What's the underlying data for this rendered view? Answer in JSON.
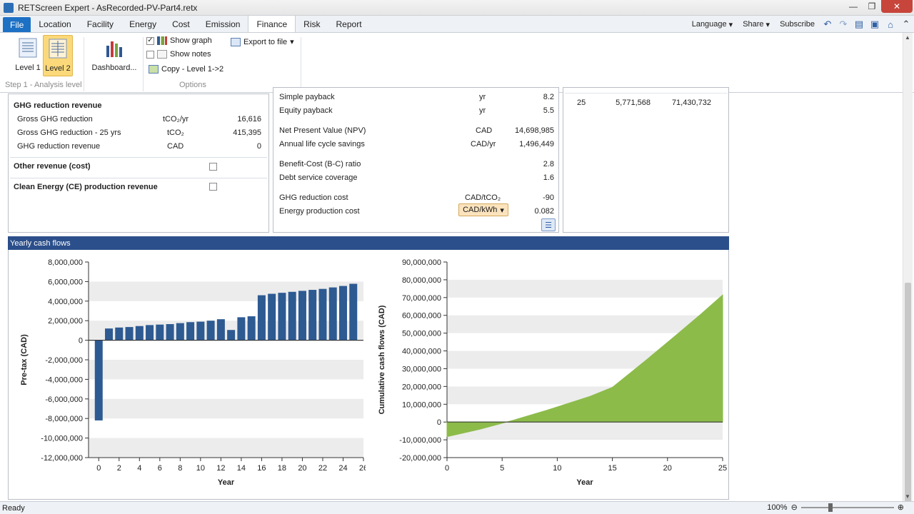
{
  "window": {
    "title": "RETScreen Expert - AsRecorded-PV-Part4.retx",
    "minimize_glyph": "—",
    "restore_glyph": "❐",
    "close_glyph": "✕"
  },
  "tabs": [
    {
      "label": "File"
    },
    {
      "label": "Location"
    },
    {
      "label": "Facility"
    },
    {
      "label": "Energy"
    },
    {
      "label": "Cost"
    },
    {
      "label": "Emission"
    },
    {
      "label": "Finance"
    },
    {
      "label": "Risk"
    },
    {
      "label": "Report"
    }
  ],
  "active_tab": "Finance",
  "top_right": {
    "language": "Language",
    "share": "Share",
    "subscribe": "Subscribe"
  },
  "ribbon": {
    "level1": "Level 1",
    "level2": "Level 2",
    "dashboard": "Dashboard...",
    "show_graph": "Show graph",
    "show_notes": "Show notes",
    "export": "Export to file",
    "copy": "Copy - Level 1->2",
    "group_analysis": "Step 1 - Analysis level",
    "group_options": "Options",
    "show_graph_checked": true,
    "show_notes_checked": false
  },
  "left_panel": {
    "ghg_title": "GHG reduction revenue",
    "rows": [
      {
        "label": "Gross GHG reduction",
        "unit": "tCO₂/yr",
        "value": "16,616"
      },
      {
        "label": "Gross GHG reduction - 25 yrs",
        "unit": "tCO₂",
        "value": "415,395"
      },
      {
        "label": "GHG reduction revenue",
        "unit": "CAD",
        "value": "0"
      }
    ],
    "other_revenue": "Other revenue (cost)",
    "clean_energy": "Clean Energy (CE) production revenue"
  },
  "middle_panel": {
    "rows": [
      {
        "label": "Simple payback",
        "unit": "yr",
        "value": "8.2"
      },
      {
        "label": "Equity payback",
        "unit": "yr",
        "value": "5.5"
      },
      {
        "label": "Net Present Value (NPV)",
        "unit": "CAD",
        "value": "14,698,985"
      },
      {
        "label": "Annual life cycle savings",
        "unit": "CAD/yr",
        "value": "1,496,449"
      },
      {
        "label": "Benefit-Cost (B-C) ratio",
        "unit": "",
        "value": "2.8"
      },
      {
        "label": "Debt service coverage",
        "unit": "",
        "value": "1.6"
      },
      {
        "label": "GHG reduction cost",
        "unit": "CAD/tCO₂",
        "value": "-90"
      },
      {
        "label": "Energy production cost",
        "unit": "CAD/kWh",
        "value": "0.082"
      }
    ]
  },
  "right_panel": {
    "rows": [
      {
        "year": "25",
        "pretax": "5,771,568",
        "cumulative": "71,430,732"
      }
    ]
  },
  "cashflow": {
    "header": "Yearly cash flows"
  },
  "status": {
    "text": "Ready",
    "zoom": "100%"
  },
  "colors": {
    "bar": "#2e5a92",
    "area": "#8cbb4a",
    "header": "#2b4f8a"
  },
  "chart_data": [
    {
      "type": "bar",
      "xlabel": "Year",
      "ylabel": "Pre-tax (CAD)",
      "ylim": [
        -12000000,
        8000000
      ],
      "yticks": [
        8000000,
        6000000,
        4000000,
        2000000,
        0,
        -2000000,
        -4000000,
        -6000000,
        -8000000,
        -10000000,
        -12000000
      ],
      "ytick_labels": [
        "8,000,000",
        "6,000,000",
        "4,000,000",
        "2,000,000",
        "0",
        "-2,000,000",
        "-4,000,000",
        "-6,000,000",
        "-8,000,000",
        "-10,000,000",
        "-12,000,000"
      ],
      "xticks": [
        0,
        2,
        4,
        6,
        8,
        10,
        12,
        14,
        16,
        18,
        20,
        22,
        24,
        26
      ],
      "xlim": [
        -1,
        26
      ],
      "x": [
        0,
        1,
        2,
        3,
        4,
        5,
        6,
        7,
        8,
        9,
        10,
        11,
        12,
        13,
        14,
        15,
        16,
        17,
        18,
        19,
        20,
        21,
        22,
        23,
        24,
        25
      ],
      "values": [
        -8200000,
        1200000,
        1300000,
        1350000,
        1450000,
        1550000,
        1600000,
        1650000,
        1750000,
        1850000,
        1900000,
        2000000,
        2150000,
        1050000,
        2350000,
        2450000,
        4600000,
        4750000,
        4850000,
        4950000,
        5050000,
        5150000,
        5250000,
        5400000,
        5550000,
        5771568
      ],
      "grid": "alternating horizontal bands"
    },
    {
      "type": "area",
      "xlabel": "Year",
      "ylabel": "Cumulative cash flows (CAD)",
      "ylim": [
        -20000000,
        90000000
      ],
      "yticks": [
        90000000,
        80000000,
        70000000,
        60000000,
        50000000,
        40000000,
        30000000,
        20000000,
        10000000,
        0,
        -10000000,
        -20000000
      ],
      "ytick_labels": [
        "90,000,000",
        "80,000,000",
        "70,000,000",
        "60,000,000",
        "50,000,000",
        "40,000,000",
        "30,000,000",
        "20,000,000",
        "10,000,000",
        "0",
        "-10,000,000",
        "-20,000,000"
      ],
      "xticks": [
        0,
        5,
        10,
        15,
        20,
        25
      ],
      "xlim": [
        0,
        25
      ],
      "x": [
        0,
        3,
        6,
        9,
        12,
        13,
        15,
        18,
        21,
        23,
        25
      ],
      "values": [
        -8200000,
        -4000000,
        1000000,
        6500000,
        12500000,
        14500000,
        19500000,
        34500000,
        50000000,
        60500000,
        71430732
      ],
      "grid": "alternating horizontal bands"
    }
  ]
}
